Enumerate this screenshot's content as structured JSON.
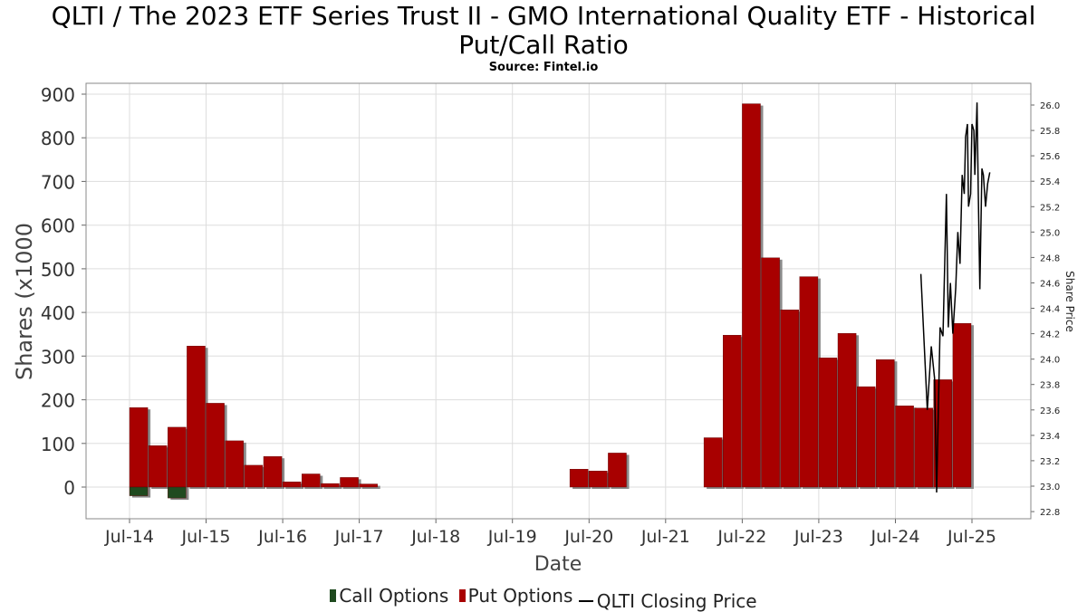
{
  "chart_data": {
    "type": "bar",
    "title_line1": "QLTI / The 2023 ETF Series Trust II - GMO International Quality ETF - Historical",
    "title_line2": "Put/Call Ratio",
    "subtitle": "Source: Fintel.io",
    "xlabel": "Date",
    "ylabel": "Shares (x1000",
    "y2label": "Share Price",
    "ylim": [
      -75,
      910
    ],
    "y2lim": [
      22.75,
      26.1
    ],
    "yticks": [
      "0",
      "100",
      "200",
      "300",
      "400",
      "500",
      "600",
      "700",
      "800",
      "900"
    ],
    "y2ticks": [
      "22.8",
      "23.0",
      "23.2",
      "23.4",
      "23.6",
      "23.8",
      "24.0",
      "24.2",
      "24.4",
      "24.6",
      "24.8",
      "25.0",
      "25.2",
      "25.4",
      "25.6",
      "25.8",
      "26.0"
    ],
    "xticks": [
      "Jul-14",
      "Jul-15",
      "Jul-16",
      "Jul-17",
      "Jul-18",
      "Jul-19",
      "Jul-20",
      "Jul-21",
      "Jul-22",
      "Jul-23",
      "Jul-24",
      "Jul-25"
    ],
    "grid": true,
    "legend_position": "bottom",
    "colors": {
      "call": "#1f4a1f",
      "put": "#a80000",
      "price": "#000000",
      "shadow": "#8a8a8a"
    },
    "put_options": [
      {
        "date": "2014-07",
        "value": 182
      },
      {
        "date": "2014-10",
        "value": 95
      },
      {
        "date": "2015-01",
        "value": 137
      },
      {
        "date": "2015-04",
        "value": 323
      },
      {
        "date": "2015-07",
        "value": 192
      },
      {
        "date": "2015-10",
        "value": 106
      },
      {
        "date": "2016-01",
        "value": 50
      },
      {
        "date": "2016-04",
        "value": 70
      },
      {
        "date": "2016-07",
        "value": 12
      },
      {
        "date": "2016-10",
        "value": 30
      },
      {
        "date": "2017-01",
        "value": 8
      },
      {
        "date": "2017-04",
        "value": 22
      },
      {
        "date": "2017-07",
        "value": 7
      },
      {
        "date": "2020-04",
        "value": 41
      },
      {
        "date": "2020-07",
        "value": 37
      },
      {
        "date": "2020-10",
        "value": 78
      },
      {
        "date": "2022-01",
        "value": 113
      },
      {
        "date": "2022-04",
        "value": 348
      },
      {
        "date": "2022-07",
        "value": 878
      },
      {
        "date": "2022-10",
        "value": 525
      },
      {
        "date": "2023-01",
        "value": 406
      },
      {
        "date": "2023-04",
        "value": 482
      },
      {
        "date": "2023-07",
        "value": 296
      },
      {
        "date": "2023-10",
        "value": 352
      },
      {
        "date": "2024-01",
        "value": 230
      },
      {
        "date": "2024-04",
        "value": 292
      },
      {
        "date": "2024-07",
        "value": 186
      },
      {
        "date": "2024-10",
        "value": 181
      },
      {
        "date": "2025-01",
        "value": 246
      },
      {
        "date": "2025-04",
        "value": 375
      }
    ],
    "call_options": [
      {
        "date": "2014-07",
        "value": -20
      },
      {
        "date": "2015-01",
        "value": -25
      }
    ],
    "closing_price": [
      {
        "date": "2024-11-01",
        "value": 24.67
      },
      {
        "date": "2024-12-01",
        "value": 23.6
      },
      {
        "date": "2024-12-20",
        "value": 24.1
      },
      {
        "date": "2025-01-05",
        "value": 23.85
      },
      {
        "date": "2025-01-15",
        "value": 22.95
      },
      {
        "date": "2025-02-01",
        "value": 24.25
      },
      {
        "date": "2025-02-15",
        "value": 24.18
      },
      {
        "date": "2025-03-01",
        "value": 25.3
      },
      {
        "date": "2025-03-10",
        "value": 24.25
      },
      {
        "date": "2025-03-20",
        "value": 24.6
      },
      {
        "date": "2025-04-01",
        "value": 24.2
      },
      {
        "date": "2025-04-15",
        "value": 24.56
      },
      {
        "date": "2025-04-25",
        "value": 25.0
      },
      {
        "date": "2025-05-05",
        "value": 24.75
      },
      {
        "date": "2025-05-15",
        "value": 25.45
      },
      {
        "date": "2025-05-25",
        "value": 25.3
      },
      {
        "date": "2025-06-01",
        "value": 25.75
      },
      {
        "date": "2025-06-10",
        "value": 25.85
      },
      {
        "date": "2025-06-15",
        "value": 25.2
      },
      {
        "date": "2025-06-25",
        "value": 25.3
      },
      {
        "date": "2025-07-01",
        "value": 25.85
      },
      {
        "date": "2025-07-10",
        "value": 25.8
      },
      {
        "date": "2025-07-15",
        "value": 25.45
      },
      {
        "date": "2025-07-25",
        "value": 26.02
      },
      {
        "date": "2025-08-01",
        "value": 25.3
      },
      {
        "date": "2025-08-08",
        "value": 24.55
      },
      {
        "date": "2025-08-18",
        "value": 25.5
      },
      {
        "date": "2025-08-25",
        "value": 25.45
      },
      {
        "date": "2025-09-05",
        "value": 25.2
      },
      {
        "date": "2025-09-15",
        "value": 25.38
      },
      {
        "date": "2025-09-25",
        "value": 25.47
      }
    ]
  },
  "legend": {
    "call_label": "Call Options",
    "put_label": "Put Options",
    "price_label": "QLTI Closing Price"
  }
}
